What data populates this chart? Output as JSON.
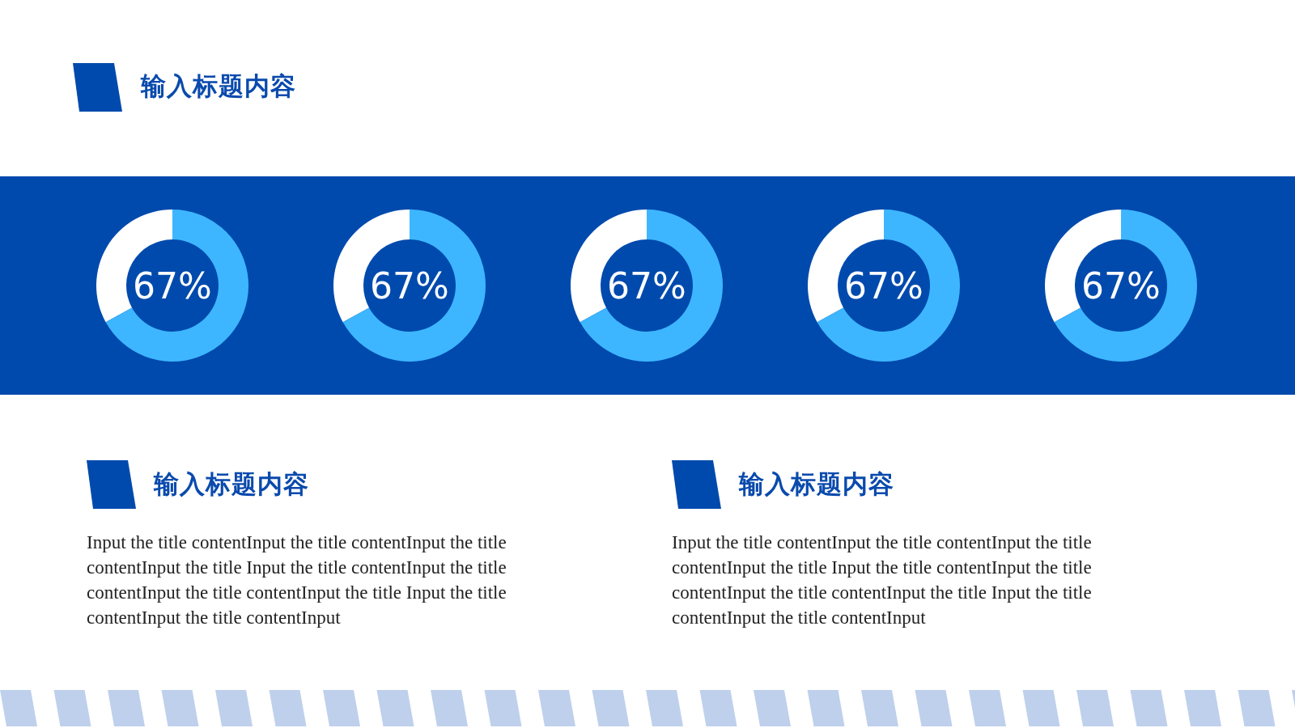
{
  "chart_data": [
    {
      "type": "other",
      "title": "输入标题内容"
    },
    {
      "type": "donut",
      "categories": [
        null,
        null
      ],
      "values": [
        67,
        33
      ],
      "colors": [
        "#3db6ff",
        "#ffffff"
      ],
      "value_labels": [
        "67%",
        null
      ]
    },
    {
      "type": "donut",
      "categories": [
        null,
        null
      ],
      "values": [
        67,
        33
      ],
      "colors": [
        "#3db6ff",
        "#ffffff"
      ],
      "value_labels": [
        "67%",
        null
      ]
    },
    {
      "type": "donut",
      "categories": [
        null,
        null
      ],
      "values": [
        67,
        33
      ],
      "colors": [
        "#3db6ff",
        "#ffffff"
      ],
      "value_labels": [
        "67%",
        null
      ]
    },
    {
      "type": "donut",
      "categories": [
        null,
        null
      ],
      "values": [
        67,
        33
      ],
      "colors": [
        "#3db6ff",
        "#ffffff"
      ],
      "value_labels": [
        "67%",
        null
      ]
    },
    {
      "type": "donut",
      "categories": [
        null,
        null
      ],
      "values": [
        67,
        33
      ],
      "colors": [
        "#3db6ff",
        "#ffffff"
      ],
      "value_labels": [
        "67%",
        null
      ]
    },
    {
      "type": "other",
      "title": "输入标题内容",
      "annotations": [
        "Input the title contentInput the title contentInput the title contentInput the title Input the title contentInput the title contentInput the title contentInput the title Input the title contentInput the title contentInput"
      ]
    },
    {
      "type": "other",
      "title": "输入标题内容",
      "annotations": [
        "Input the title contentInput the title contentInput the title contentInput the title Input the title contentInput the title contentInput the title contentInput the title Input the title contentInput the title contentInput"
      ]
    }
  ]
}
